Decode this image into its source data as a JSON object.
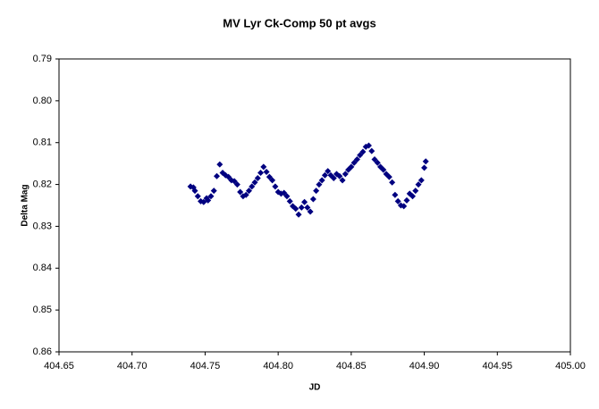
{
  "chart_data": {
    "type": "scatter",
    "title": "MV Lyr Ck-Comp 50 pt avgs",
    "x_label": "JD",
    "y_label": "Delta Mag",
    "xlim": [
      404.65,
      405.0
    ],
    "xticks": [
      404.65,
      {
        "value": 404.7,
        "label": "404.70"
      },
      404.75,
      {
        "value": 404.8,
        "label": "404.80"
      },
      404.85,
      {
        "value": 404.9,
        "label": "404.90"
      },
      404.95,
      {
        "value": 405.0,
        "label": "405.00"
      }
    ],
    "ylim": [
      0.79,
      0.86
    ],
    "y_reversed": true,
    "yticks": [
      0.79,
      {
        "value": 0.8,
        "label": "0.80"
      },
      0.81,
      0.82,
      0.83,
      0.84,
      0.85,
      0.86
    ],
    "grid": false,
    "series": [
      {
        "color": "#000080",
        "x": [
          404.74,
          404.742,
          404.743,
          404.745,
          404.747,
          404.749,
          404.751,
          404.752,
          404.754,
          404.756,
          404.758,
          404.76,
          404.762,
          404.764,
          404.766,
          404.768,
          404.77,
          404.772,
          404.774,
          404.776,
          404.778,
          404.78,
          404.782,
          404.784,
          404.786,
          404.788,
          404.79,
          404.792,
          404.794,
          404.796,
          404.798,
          404.8,
          404.802,
          404.804,
          404.806,
          404.808,
          404.81,
          404.812,
          404.814,
          404.816,
          404.818,
          404.82,
          404.822,
          404.824,
          404.826,
          404.828,
          404.83,
          404.832,
          404.834,
          404.836,
          404.838,
          404.84,
          404.842,
          404.844,
          404.846,
          404.848,
          404.85,
          404.852,
          404.854,
          404.856,
          404.858,
          404.86,
          404.862,
          404.864,
          404.866,
          404.868,
          404.87,
          404.872,
          404.874,
          404.876,
          404.878,
          404.88,
          404.882,
          404.884,
          404.886,
          404.888,
          404.89,
          404.892,
          404.894,
          404.896,
          404.898,
          404.9,
          404.901
        ],
        "values": [
          0.8205,
          0.8207,
          0.8215,
          0.8228,
          0.824,
          0.8242,
          0.8233,
          0.8238,
          0.8228,
          0.8215,
          0.818,
          0.8152,
          0.8172,
          0.8178,
          0.8182,
          0.819,
          0.8192,
          0.82,
          0.8218,
          0.8228,
          0.8225,
          0.8215,
          0.8205,
          0.8195,
          0.8185,
          0.8172,
          0.8158,
          0.817,
          0.8182,
          0.819,
          0.8205,
          0.8218,
          0.8222,
          0.822,
          0.8228,
          0.824,
          0.8252,
          0.8258,
          0.8272,
          0.8255,
          0.8242,
          0.8255,
          0.8265,
          0.8235,
          0.8215,
          0.82,
          0.819,
          0.8178,
          0.8168,
          0.8178,
          0.8185,
          0.8175,
          0.818,
          0.819,
          0.8175,
          0.8165,
          0.8158,
          0.8148,
          0.814,
          0.813,
          0.8122,
          0.811,
          0.8107,
          0.812,
          0.814,
          0.8148,
          0.8158,
          0.8165,
          0.8175,
          0.8182,
          0.8195,
          0.8225,
          0.824,
          0.825,
          0.8252,
          0.8238,
          0.8222,
          0.8228,
          0.8215,
          0.82,
          0.819,
          0.816,
          0.8145
        ]
      }
    ]
  }
}
